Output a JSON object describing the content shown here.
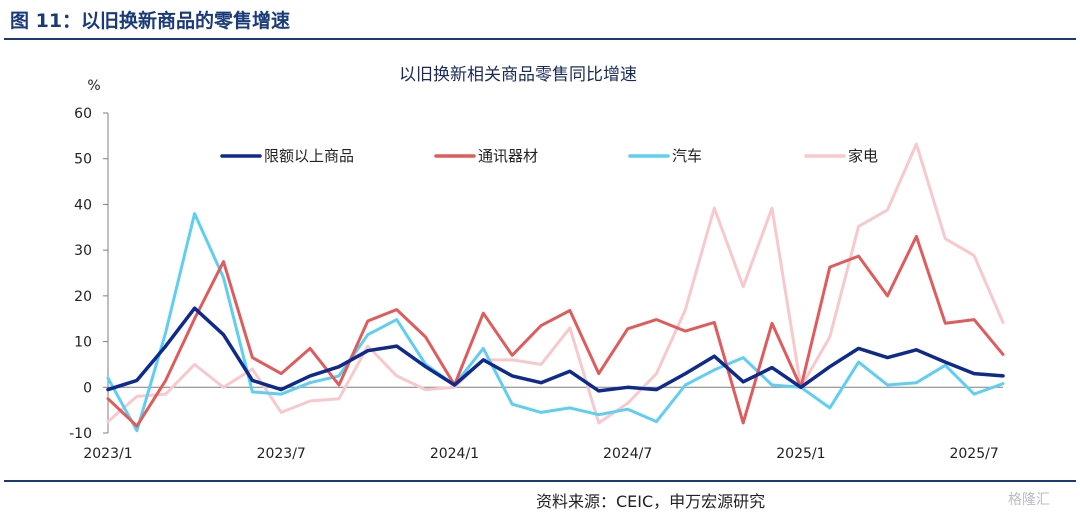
{
  "figure_title": "图 11：以旧换新商品的零售增速",
  "source": "资料来源：CEIC，申万宏源研究",
  "watermark": "格隆汇",
  "chart_data": {
    "type": "line",
    "title": "以旧换新相关商品零售同比增速",
    "ylabel": "%",
    "xlabel": "",
    "ylim": [
      -10,
      60
    ],
    "yticks": [
      -10,
      0,
      10,
      20,
      30,
      40,
      50,
      60
    ],
    "grid": false,
    "legend": "top",
    "x": [
      "2023/1",
      "2023/2",
      "2023/3",
      "2023/4",
      "2023/5",
      "2023/6",
      "2023/7",
      "2023/8",
      "2023/9",
      "2023/10",
      "2023/11",
      "2023/12",
      "2024/1",
      "2024/2",
      "2024/3",
      "2024/4",
      "2024/5",
      "2024/6",
      "2024/7",
      "2024/8",
      "2024/9",
      "2024/10",
      "2024/11",
      "2024/12",
      "2025/1",
      "2025/2",
      "2025/3",
      "2025/4",
      "2025/5",
      "2025/6",
      "2025/7",
      "2025/8"
    ],
    "xtick_labels": [
      "2023/1",
      "2023/7",
      "2024/1",
      "2024/7",
      "2025/1",
      "2025/7"
    ],
    "series": [
      {
        "name": "限额以上商品",
        "color": "#0d2a8c",
        "values": [
          -0.5,
          1.5,
          9,
          17.3,
          11.5,
          1.5,
          -0.5,
          2.5,
          4.5,
          8,
          9,
          4.5,
          0.5,
          6,
          2.5,
          1,
          3.5,
          -0.8,
          0,
          -0.5,
          3,
          6.8,
          1.2,
          4.3,
          0,
          4.5,
          8.5,
          6.5,
          8.2,
          5.5,
          3,
          2.5
        ]
      },
      {
        "name": "通讯器材",
        "color": "#e05c5c",
        "values": [
          -2.5,
          -8.5,
          1.5,
          15,
          27.5,
          6.5,
          3,
          8.5,
          0.5,
          14.5,
          17,
          11,
          0.5,
          16.2,
          7,
          13.5,
          16.8,
          3,
          12.8,
          14.8,
          12.3,
          14.2,
          -7.8,
          14,
          0,
          26.3,
          28.7,
          20,
          33,
          14,
          14.8,
          7.2
        ]
      },
      {
        "name": "汽车",
        "color": "#5ecff2",
        "values": [
          2,
          -9.5,
          12,
          38,
          24,
          -1,
          -1.5,
          1,
          2.5,
          11.5,
          14.8,
          5,
          0.5,
          8.5,
          -3.7,
          -5.5,
          -4.5,
          -6,
          -4.8,
          -7.5,
          0.5,
          3.8,
          6.5,
          0.5,
          0,
          -4.5,
          5.5,
          0.5,
          1,
          4.8,
          -1.5,
          0.8
        ]
      },
      {
        "name": "家电",
        "color": "#f7c9cc",
        "values": [
          -7.5,
          -2,
          -1.5,
          5,
          0,
          4,
          -5.5,
          -3,
          -2.5,
          9,
          2.5,
          -0.5,
          0,
          6,
          6,
          5,
          13,
          -7.8,
          -3.5,
          3,
          17,
          39.2,
          22,
          39.2,
          0,
          11,
          35.2,
          38.8,
          53.2,
          32.5,
          28.8,
          14.2
        ]
      }
    ]
  }
}
